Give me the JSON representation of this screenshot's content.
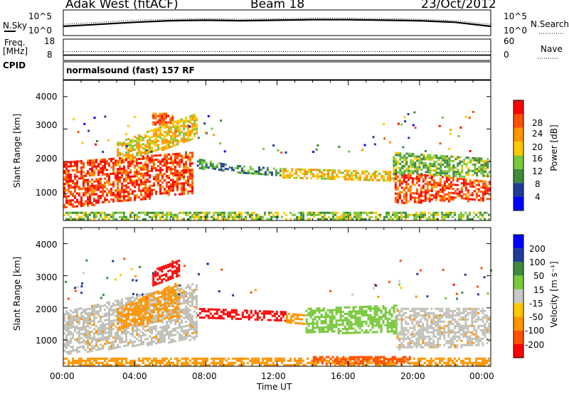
{
  "header": {
    "radar": "Adak West (fitACF)",
    "beam": "Beam 18",
    "date": "23/Oct/2012"
  },
  "top_panels": {
    "nsky_label": "N.Sky",
    "nsky_ticks": [
      "10^5",
      "10^0"
    ],
    "nsearch_label": "N.Search",
    "nsearch_ticks": [
      "10^5",
      "10^0"
    ],
    "freq_label": "Freq.",
    "freq_unit": "[MHz]",
    "freq_ticks": [
      "18",
      "8"
    ],
    "nave_label": "Nave",
    "nave_ticks": [
      "60",
      "0"
    ],
    "cpid_label": "CPID",
    "cpid_text": "normalsound (fast) 157 RF"
  },
  "colors": {
    "power_scale": [
      "#0000ff",
      "#1e3c96",
      "#3c8c3c",
      "#78c83c",
      "#ffc800",
      "#ff9600",
      "#ff5000",
      "#ff0000"
    ],
    "velocity_scale": [
      "#ff0000",
      "#ff5000",
      "#ff9600",
      "#ffc800",
      "#c8c8c8",
      "#78c83c",
      "#3c8c3c",
      "#1e3c96",
      "#0000ff"
    ],
    "ground_scatter": "#c0c0b8"
  },
  "chart_data": [
    {
      "type": "line",
      "panel": "N.Sky / N.Search",
      "x": [
        0,
        2,
        4,
        6,
        8,
        10,
        12,
        14,
        16,
        18,
        20,
        22,
        24
      ],
      "y_nsky_log10": [
        1.8,
        2.2,
        2.6,
        2.9,
        3.0,
        2.9,
        3.0,
        3.1,
        3.1,
        3.0,
        2.9,
        2.6,
        1.8
      ],
      "y_nsearch_log10": [
        2.2,
        2.6,
        3.0,
        3.2,
        3.3,
        3.2,
        3.3,
        3.4,
        3.4,
        3.3,
        3.2,
        2.9,
        2.2
      ],
      "ylim": [
        0,
        5
      ]
    },
    {
      "type": "line",
      "panel": "Freq. / Nave",
      "x": [
        0,
        24
      ],
      "freq_mhz": [
        10.5,
        10.5
      ],
      "nave": [
        25,
        25
      ],
      "freq_lim": [
        8,
        18
      ],
      "nave_lim": [
        0,
        60
      ]
    },
    {
      "type": "heatmap",
      "panel": "Power",
      "ylabel": "Slant Range [km]",
      "ylim": [
        180,
        4500
      ],
      "yticks": [
        "1000",
        "2000",
        "3000",
        "4000"
      ],
      "xlim": [
        0,
        24
      ],
      "colorbar_label": "Power [dB]",
      "colorbar_ticks": [
        "4",
        "8",
        "12",
        "16",
        "20",
        "24",
        "28"
      ],
      "bands": [
        {
          "t0": 0.0,
          "t1": 7.3,
          "r0": [
            550,
            1000
          ],
          "r1": [
            2000,
            2300
          ],
          "v": 27
        },
        {
          "t0": 3.0,
          "t1": 7.5,
          "r0": [
            1900,
            2700
          ],
          "r1": [
            2600,
            3500
          ],
          "v": 19
        },
        {
          "t0": 5.0,
          "t1": 6.2,
          "r0": [
            3100,
            3100
          ],
          "r1": [
            3500,
            3500
          ],
          "v": 26
        },
        {
          "t0": 7.5,
          "t1": 9.5,
          "r0": [
            1750,
            1700
          ],
          "r1": [
            2100,
            1900
          ],
          "v": 10
        },
        {
          "t0": 9.5,
          "t1": 12.3,
          "r0": [
            1650,
            1550
          ],
          "r1": [
            1900,
            1800
          ],
          "v": 11
        },
        {
          "t0": 12.3,
          "t1": 18.8,
          "r0": [
            1450,
            1350
          ],
          "r1": [
            1800,
            1700
          ],
          "v": 19
        },
        {
          "t0": 18.6,
          "t1": 24.0,
          "r0": [
            700,
            800
          ],
          "r1": [
            1700,
            1400
          ],
          "v": 27
        },
        {
          "t0": 18.5,
          "t1": 24.0,
          "r0": [
            1600,
            1500
          ],
          "r1": [
            2300,
            2100
          ],
          "v": 13
        },
        {
          "t0": 0.0,
          "t1": 24.0,
          "r0": [
            180,
            180
          ],
          "r1": [
            450,
            450
          ],
          "v": 14
        }
      ]
    },
    {
      "type": "heatmap",
      "panel": "Velocity",
      "ylabel": "Slant Range [km]",
      "ylim": [
        180,
        4500
      ],
      "yticks": [
        "1000",
        "2000",
        "3000",
        "4000"
      ],
      "xlim": [
        0,
        24
      ],
      "xlabel": "Time UT",
      "xticks": [
        "00:00",
        "04:00",
        "08:00",
        "12:00",
        "16:00",
        "20:00",
        "00:00"
      ],
      "colorbar_label": "Velocity [m s⁻¹]",
      "colorbar_ticks": [
        "200",
        "100",
        "50",
        "15",
        "-15",
        "-50",
        "-100",
        "-200"
      ],
      "bands": [
        {
          "t0": 0.0,
          "t1": 7.5,
          "r0": [
            550,
            1000
          ],
          "r1": [
            1900,
            2800
          ],
          "v": 0,
          "gs": true
        },
        {
          "t0": 3.0,
          "t1": 6.5,
          "r0": [
            1300,
            1700
          ],
          "r1": [
            2000,
            2800
          ],
          "v": -70
        },
        {
          "t0": 5.0,
          "t1": 6.5,
          "r0": [
            2700,
            3000
          ],
          "r1": [
            3200,
            3500
          ],
          "v": -220
        },
        {
          "t0": 7.5,
          "t1": 12.5,
          "r0": [
            1700,
            1550
          ],
          "r1": [
            2000,
            1900
          ],
          "v": -220
        },
        {
          "t0": 12.5,
          "t1": 13.6,
          "r0": [
            1500,
            1450
          ],
          "r1": [
            1850,
            1800
          ],
          "v": -80
        },
        {
          "t0": 13.6,
          "t1": 18.7,
          "r0": [
            1200,
            1200
          ],
          "r1": [
            2000,
            2100
          ],
          "v": 30
        },
        {
          "t0": 18.7,
          "t1": 24.0,
          "r0": [
            700,
            800
          ],
          "r1": [
            2000,
            2000
          ],
          "v": 0,
          "gs": true
        },
        {
          "t0": 0.0,
          "t1": 24.0,
          "r0": [
            180,
            180
          ],
          "r1": [
            450,
            450
          ],
          "v": -60
        },
        {
          "t0": 14.0,
          "t1": 19.5,
          "r0": [
            250,
            250
          ],
          "r1": [
            500,
            500
          ],
          "v": -120
        }
      ]
    }
  ]
}
